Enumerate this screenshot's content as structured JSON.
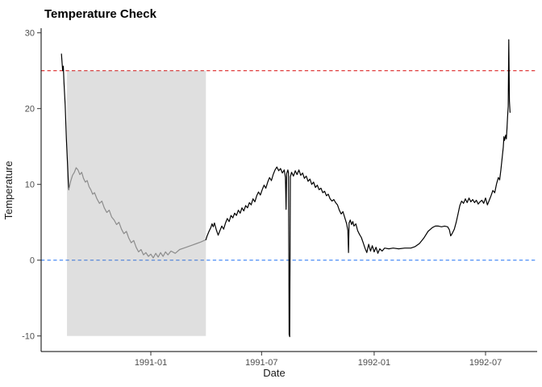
{
  "chart_data": {
    "type": "line",
    "title": "Temperature Check",
    "xlabel": "Date",
    "ylabel": "Temperature",
    "grid": "off",
    "legend": "none",
    "colors": {
      "line_default": "#000000",
      "line_highlight_window": "#8c8c8c",
      "upper_threshold": "#dc2626",
      "zero_line": "#3b82f6",
      "shaded_region_fill": "rgba(128,128,128,0.25)",
      "axis_line": "#000000",
      "tick_label": "#4d4d4d"
    },
    "x_axis": {
      "ticks": [
        {
          "label": "1991-01",
          "date": "1991-01-01"
        },
        {
          "label": "1991-07",
          "date": "1991-07-01"
        },
        {
          "label": "1992-01",
          "date": "1992-01-01"
        },
        {
          "label": "1992-07",
          "date": "1992-07-01"
        }
      ],
      "shown_range": [
        "1990-07-02",
        "1992-09-17"
      ]
    },
    "y_axis": {
      "ticks": [
        {
          "label": "30",
          "value": 30
        },
        {
          "label": "20",
          "value": 20
        },
        {
          "label": "10",
          "value": 10
        },
        {
          "label": "0",
          "value": 0
        },
        {
          "label": "-10",
          "value": -10
        }
      ],
      "shown_range": [
        -12,
        30.8
      ]
    },
    "reference_lines": [
      {
        "name": "upper-threshold-line",
        "axis": "y",
        "value": 25,
        "style": "dashed",
        "color": "#dc2626"
      },
      {
        "name": "zero-reference-line",
        "axis": "y",
        "value": 0,
        "style": "dashed",
        "color": "#3b82f6"
      }
    ],
    "shaded_region": {
      "x_start": "1990-08-17",
      "x_end": "1991-04-01",
      "y_min": -10,
      "y_max": 25,
      "fill": "rgba(128,128,128,0.25)"
    },
    "series": [
      {
        "name": "temperature-initial-drop",
        "color": "#000000",
        "points": [
          [
            "1990-08-08",
            27.2
          ],
          [
            "1990-08-09",
            26.0
          ],
          [
            "1990-08-10",
            25.0
          ],
          [
            "1990-08-11",
            25.6
          ],
          [
            "1990-08-12",
            23.5
          ],
          [
            "1990-08-14",
            20.5
          ],
          [
            "1990-08-16",
            16.0
          ],
          [
            "1990-08-18",
            12.5
          ],
          [
            "1990-08-19",
            10.5
          ],
          [
            "1990-08-20",
            9.3
          ]
        ]
      },
      {
        "name": "temperature-highlighted-window",
        "color": "#8c8c8c",
        "points": [
          [
            "1990-08-20",
            9.3
          ],
          [
            "1990-08-23",
            10.4
          ],
          [
            "1990-08-26",
            11.2
          ],
          [
            "1990-08-29",
            11.6
          ],
          [
            "1990-09-01",
            12.2
          ],
          [
            "1990-09-04",
            11.9
          ],
          [
            "1990-09-07",
            11.3
          ],
          [
            "1990-09-10",
            11.6
          ],
          [
            "1990-09-13",
            10.8
          ],
          [
            "1990-09-16",
            10.3
          ],
          [
            "1990-09-19",
            10.5
          ],
          [
            "1990-09-22",
            9.7
          ],
          [
            "1990-09-25",
            9.3
          ],
          [
            "1990-09-28",
            8.7
          ],
          [
            "1990-10-01",
            8.9
          ],
          [
            "1990-10-05",
            8.1
          ],
          [
            "1990-10-09",
            7.5
          ],
          [
            "1990-10-13",
            7.8
          ],
          [
            "1990-10-17",
            6.9
          ],
          [
            "1990-10-21",
            6.3
          ],
          [
            "1990-10-25",
            6.6
          ],
          [
            "1990-10-29",
            5.7
          ],
          [
            "1990-11-02",
            5.3
          ],
          [
            "1990-11-06",
            4.7
          ],
          [
            "1990-11-10",
            5.0
          ],
          [
            "1990-11-14",
            4.1
          ],
          [
            "1990-11-18",
            3.5
          ],
          [
            "1990-11-22",
            3.8
          ],
          [
            "1990-11-26",
            2.9
          ],
          [
            "1990-11-30",
            2.3
          ],
          [
            "1990-12-04",
            2.6
          ],
          [
            "1990-12-08",
            1.7
          ],
          [
            "1990-12-12",
            1.1
          ],
          [
            "1990-12-16",
            1.4
          ],
          [
            "1990-12-20",
            0.7
          ],
          [
            "1990-12-24",
            1.0
          ],
          [
            "1990-12-28",
            0.5
          ],
          [
            "1991-01-01",
            0.8
          ],
          [
            "1991-01-05",
            0.3
          ],
          [
            "1991-01-09",
            0.9
          ],
          [
            "1991-01-13",
            0.4
          ],
          [
            "1991-01-17",
            1.0
          ],
          [
            "1991-01-21",
            0.5
          ],
          [
            "1991-01-25",
            1.1
          ],
          [
            "1991-01-29",
            0.7
          ],
          [
            "1991-02-03",
            1.2
          ],
          [
            "1991-02-10",
            0.9
          ],
          [
            "1991-02-17",
            1.4
          ],
          [
            "1991-02-24",
            1.6
          ],
          [
            "1991-03-03",
            1.8
          ],
          [
            "1991-03-10",
            2.0
          ],
          [
            "1991-03-17",
            2.2
          ],
          [
            "1991-03-24",
            2.4
          ],
          [
            "1991-04-01",
            2.7
          ]
        ]
      },
      {
        "name": "temperature-main",
        "color": "#000000",
        "points": [
          [
            "1991-04-01",
            2.7
          ],
          [
            "1991-04-03",
            3.2
          ],
          [
            "1991-04-06",
            3.8
          ],
          [
            "1991-04-09",
            4.3
          ],
          [
            "1991-04-11",
            4.8
          ],
          [
            "1991-04-13",
            4.4
          ],
          [
            "1991-04-15",
            4.9
          ],
          [
            "1991-04-18",
            4.0
          ],
          [
            "1991-04-21",
            3.3
          ],
          [
            "1991-04-24",
            3.9
          ],
          [
            "1991-04-27",
            4.5
          ],
          [
            "1991-04-30",
            4.1
          ],
          [
            "1991-05-03",
            4.9
          ],
          [
            "1991-05-06",
            5.5
          ],
          [
            "1991-05-09",
            5.1
          ],
          [
            "1991-05-12",
            5.9
          ],
          [
            "1991-05-15",
            5.6
          ],
          [
            "1991-05-18",
            6.2
          ],
          [
            "1991-05-21",
            5.9
          ],
          [
            "1991-05-24",
            6.6
          ],
          [
            "1991-05-27",
            6.2
          ],
          [
            "1991-05-30",
            6.9
          ],
          [
            "1991-06-02",
            6.5
          ],
          [
            "1991-06-05",
            7.2
          ],
          [
            "1991-06-08",
            6.9
          ],
          [
            "1991-06-11",
            7.6
          ],
          [
            "1991-06-14",
            7.3
          ],
          [
            "1991-06-17",
            8.1
          ],
          [
            "1991-06-20",
            7.7
          ],
          [
            "1991-06-23",
            8.5
          ],
          [
            "1991-06-26",
            9.0
          ],
          [
            "1991-06-29",
            8.6
          ],
          [
            "1991-07-02",
            9.3
          ],
          [
            "1991-07-05",
            9.9
          ],
          [
            "1991-07-08",
            9.5
          ],
          [
            "1991-07-11",
            10.3
          ],
          [
            "1991-07-14",
            10.9
          ],
          [
            "1991-07-17",
            10.5
          ],
          [
            "1991-07-20",
            11.3
          ],
          [
            "1991-07-23",
            11.9
          ],
          [
            "1991-07-26",
            12.3
          ],
          [
            "1991-07-29",
            11.8
          ],
          [
            "1991-08-01",
            12.1
          ],
          [
            "1991-08-04",
            11.5
          ],
          [
            "1991-08-07",
            11.9
          ],
          [
            "1991-08-09",
            10.9
          ],
          [
            "1991-08-10",
            6.7
          ],
          [
            "1991-08-11",
            11.4
          ],
          [
            "1991-08-13",
            11.9
          ],
          [
            "1991-08-14",
            11.5
          ],
          [
            "1991-08-15",
            -9.8
          ],
          [
            "1991-08-16",
            -10.1
          ],
          [
            "1991-08-17",
            11.0
          ],
          [
            "1991-08-19",
            11.6
          ],
          [
            "1991-08-22",
            11.1
          ],
          [
            "1991-08-25",
            11.8
          ],
          [
            "1991-08-28",
            11.3
          ],
          [
            "1991-08-31",
            11.9
          ],
          [
            "1991-09-03",
            11.2
          ],
          [
            "1991-09-06",
            11.5
          ],
          [
            "1991-09-09",
            10.8
          ],
          [
            "1991-09-12",
            11.1
          ],
          [
            "1991-09-15",
            10.4
          ],
          [
            "1991-09-18",
            10.7
          ],
          [
            "1991-09-21",
            10.0
          ],
          [
            "1991-09-24",
            10.3
          ],
          [
            "1991-09-27",
            9.6
          ],
          [
            "1991-09-30",
            9.9
          ],
          [
            "1991-10-03",
            9.3
          ],
          [
            "1991-10-06",
            9.5
          ],
          [
            "1991-10-09",
            8.9
          ],
          [
            "1991-10-12",
            9.1
          ],
          [
            "1991-10-15",
            8.5
          ],
          [
            "1991-10-18",
            8.7
          ],
          [
            "1991-10-21",
            8.1
          ],
          [
            "1991-10-24",
            7.8
          ],
          [
            "1991-10-27",
            8.0
          ],
          [
            "1991-10-30",
            7.6
          ],
          [
            "1991-11-02",
            7.3
          ],
          [
            "1991-11-05",
            6.6
          ],
          [
            "1991-11-08",
            6.1
          ],
          [
            "1991-11-11",
            6.4
          ],
          [
            "1991-11-14",
            5.6
          ],
          [
            "1991-11-17",
            4.8
          ],
          [
            "1991-11-19",
            3.9
          ],
          [
            "1991-11-20",
            1.0
          ],
          [
            "1991-11-21",
            4.9
          ],
          [
            "1991-11-23",
            5.3
          ],
          [
            "1991-11-25",
            4.7
          ],
          [
            "1991-11-27",
            5.1
          ],
          [
            "1991-11-29",
            4.5
          ],
          [
            "1991-12-02",
            4.8
          ],
          [
            "1991-12-05",
            3.9
          ],
          [
            "1991-12-08",
            3.4
          ],
          [
            "1991-12-11",
            3.0
          ],
          [
            "1991-12-14",
            2.3
          ],
          [
            "1991-12-17",
            1.6
          ],
          [
            "1991-12-20",
            1.0
          ],
          [
            "1991-12-23",
            2.1
          ],
          [
            "1991-12-26",
            1.2
          ],
          [
            "1991-12-29",
            1.9
          ],
          [
            "1992-01-01",
            1.1
          ],
          [
            "1992-01-04",
            1.7
          ],
          [
            "1992-01-07",
            0.9
          ],
          [
            "1992-01-10",
            1.5
          ],
          [
            "1992-01-14",
            1.2
          ],
          [
            "1992-01-18",
            1.6
          ],
          [
            "1992-01-25",
            1.5
          ],
          [
            "1992-02-01",
            1.6
          ],
          [
            "1992-02-10",
            1.5
          ],
          [
            "1992-02-20",
            1.6
          ],
          [
            "1992-03-01",
            1.6
          ],
          [
            "1992-03-08",
            1.8
          ],
          [
            "1992-03-15",
            2.2
          ],
          [
            "1992-03-22",
            2.9
          ],
          [
            "1992-03-29",
            3.8
          ],
          [
            "1992-04-05",
            4.3
          ],
          [
            "1992-04-10",
            4.5
          ],
          [
            "1992-04-15",
            4.5
          ],
          [
            "1992-04-20",
            4.4
          ],
          [
            "1992-04-25",
            4.5
          ],
          [
            "1992-04-30",
            4.4
          ],
          [
            "1992-05-03",
            4.0
          ],
          [
            "1992-05-05",
            3.2
          ],
          [
            "1992-05-08",
            3.6
          ],
          [
            "1992-05-11",
            4.1
          ],
          [
            "1992-05-14",
            5.0
          ],
          [
            "1992-05-17",
            6.1
          ],
          [
            "1992-05-20",
            7.2
          ],
          [
            "1992-05-23",
            7.8
          ],
          [
            "1992-05-26",
            7.5
          ],
          [
            "1992-05-29",
            8.1
          ],
          [
            "1992-06-01",
            7.6
          ],
          [
            "1992-06-04",
            8.2
          ],
          [
            "1992-06-07",
            7.7
          ],
          [
            "1992-06-10",
            8.0
          ],
          [
            "1992-06-13",
            7.6
          ],
          [
            "1992-06-16",
            7.9
          ],
          [
            "1992-06-19",
            7.4
          ],
          [
            "1992-06-22",
            7.7
          ],
          [
            "1992-06-25",
            7.9
          ],
          [
            "1992-06-28",
            7.5
          ],
          [
            "1992-07-01",
            8.2
          ],
          [
            "1992-07-04",
            7.3
          ],
          [
            "1992-07-07",
            7.9
          ],
          [
            "1992-07-10",
            8.5
          ],
          [
            "1992-07-13",
            9.2
          ],
          [
            "1992-07-16",
            8.9
          ],
          [
            "1992-07-19",
            10.1
          ],
          [
            "1992-07-22",
            10.9
          ],
          [
            "1992-07-24",
            10.6
          ],
          [
            "1992-07-26",
            11.9
          ],
          [
            "1992-07-28",
            13.4
          ],
          [
            "1992-07-30",
            14.9
          ],
          [
            "1992-07-31",
            16.3
          ],
          [
            "1992-08-01",
            15.8
          ],
          [
            "1992-08-03",
            16.5
          ],
          [
            "1992-08-04",
            16.0
          ],
          [
            "1992-08-05",
            17.4
          ],
          [
            "1992-08-06",
            18.9
          ],
          [
            "1992-08-07",
            20.3
          ],
          [
            "1992-08-08",
            29.1
          ],
          [
            "1992-08-09",
            21.0
          ],
          [
            "1992-08-10",
            19.5
          ]
        ]
      }
    ]
  }
}
